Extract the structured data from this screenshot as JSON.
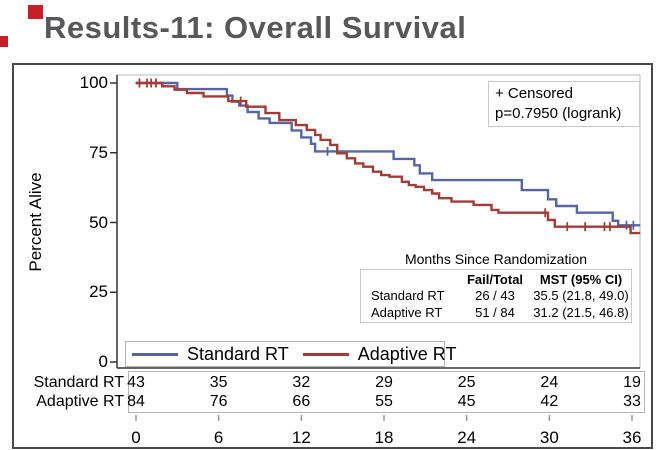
{
  "slide": {
    "title": "Results-11: Overall Survival"
  },
  "decor": {
    "accent_color": "#c42127"
  },
  "annotation_box": {
    "line1": "+ Censored",
    "line2": "p=0.7950 (logrank)"
  },
  "stats_table": {
    "title": "Months Since Randomization",
    "col_headers": [
      "Fail/Total",
      "MST (95% CI)"
    ],
    "rows": [
      {
        "label": "Standard RT",
        "fail_total": "26 / 43",
        "mst": "35.5 (21.8, 49.0)"
      },
      {
        "label": "Adaptive RT",
        "fail_total": "51 / 84",
        "mst": "31.2 (21.5, 46.8)"
      }
    ]
  },
  "legend": {
    "items": [
      {
        "label": "Standard RT",
        "color": "#5766a3"
      },
      {
        "label": "Adaptive RT",
        "color": "#a13d39"
      }
    ]
  },
  "risk_table": {
    "rows": [
      {
        "label": "Standard RT",
        "values": [
          "43",
          "35",
          "32",
          "29",
          "25",
          "24",
          "19"
        ]
      },
      {
        "label": "Adaptive RT",
        "values": [
          "84",
          "76",
          "66",
          "55",
          "45",
          "42",
          "33"
        ]
      }
    ]
  },
  "chart_data": {
    "type": "line",
    "subtype": "kaplan-meier-step",
    "title": "",
    "xlabel": "",
    "ylabel": "Percent Alive",
    "xticks": [
      0,
      6,
      12,
      18,
      24,
      30,
      36
    ],
    "yticks": [
      0,
      25,
      50,
      75,
      100
    ],
    "xlim": [
      0,
      36.6
    ],
    "ylim": [
      0,
      100
    ],
    "grid": false,
    "legend_position": "bottom-inside",
    "pvalue": "p=0.7950 (logrank)",
    "series": [
      {
        "name": "Standard RT",
        "color": "#5766a3",
        "fail_total": "26 / 43",
        "median_survival": "35.5 (21.8, 49.0)",
        "steps": [
          [
            0,
            100
          ],
          [
            3.0,
            97.8
          ],
          [
            6.6,
            95.5
          ],
          [
            7.0,
            93.3
          ],
          [
            7.5,
            91.9
          ],
          [
            8.1,
            89.6
          ],
          [
            8.9,
            87.3
          ],
          [
            9.7,
            85.7
          ],
          [
            11.3,
            83.0
          ],
          [
            12.0,
            80.5
          ],
          [
            12.7,
            78.2
          ],
          [
            13.0,
            75.5
          ],
          [
            18.7,
            72.8
          ],
          [
            20.2,
            70.5
          ],
          [
            20.6,
            67.6
          ],
          [
            21.5,
            65.2
          ],
          [
            28.0,
            61.6
          ],
          [
            29.9,
            58.3
          ],
          [
            30.5,
            55.9
          ],
          [
            32.0,
            53.5
          ],
          [
            34.6,
            50.6
          ],
          [
            35.0,
            49.0
          ]
        ],
        "censored": [
          [
            13.9,
            75.5
          ],
          [
            35.6,
            49.0
          ],
          [
            36.1,
            49.0
          ]
        ]
      },
      {
        "name": "Adaptive RT",
        "color": "#a13d39",
        "fail_total": "51 / 84",
        "median_survival": "31.2 (21.5, 46.8)",
        "steps": [
          [
            0,
            100
          ],
          [
            1.9,
            98.8
          ],
          [
            2.8,
            97.6
          ],
          [
            3.7,
            96.4
          ],
          [
            4.9,
            95.2
          ],
          [
            6.7,
            93.5
          ],
          [
            8.0,
            91.5
          ],
          [
            9.4,
            89.2
          ],
          [
            10.4,
            86.7
          ],
          [
            11.6,
            84.9
          ],
          [
            12.4,
            83.2
          ],
          [
            13.0,
            81.4
          ],
          [
            13.4,
            79.6
          ],
          [
            14.1,
            77.8
          ],
          [
            14.6,
            74.8
          ],
          [
            15.3,
            73.0
          ],
          [
            15.9,
            71.2
          ],
          [
            16.5,
            70.0
          ],
          [
            17.2,
            68.2
          ],
          [
            17.8,
            67.0
          ],
          [
            18.4,
            66.4
          ],
          [
            19.3,
            64.6
          ],
          [
            19.8,
            63.4
          ],
          [
            20.3,
            62.8
          ],
          [
            20.9,
            61.6
          ],
          [
            21.5,
            60.4
          ],
          [
            22.0,
            58.7
          ],
          [
            22.9,
            57.5
          ],
          [
            24.5,
            56.3
          ],
          [
            25.8,
            54.5
          ],
          [
            26.3,
            53.5
          ],
          [
            29.9,
            50.9
          ],
          [
            30.4,
            48.5
          ],
          [
            35.9,
            46.2
          ]
        ],
        "censored": [
          [
            0.25,
            100
          ],
          [
            0.8,
            100
          ],
          [
            1.1,
            100
          ],
          [
            1.45,
            100
          ],
          [
            7.6,
            93.5
          ],
          [
            29.7,
            53.5
          ],
          [
            31.3,
            48.5
          ],
          [
            32.6,
            48.5
          ],
          [
            34.0,
            48.5
          ],
          [
            34.4,
            48.5
          ]
        ]
      }
    ]
  }
}
